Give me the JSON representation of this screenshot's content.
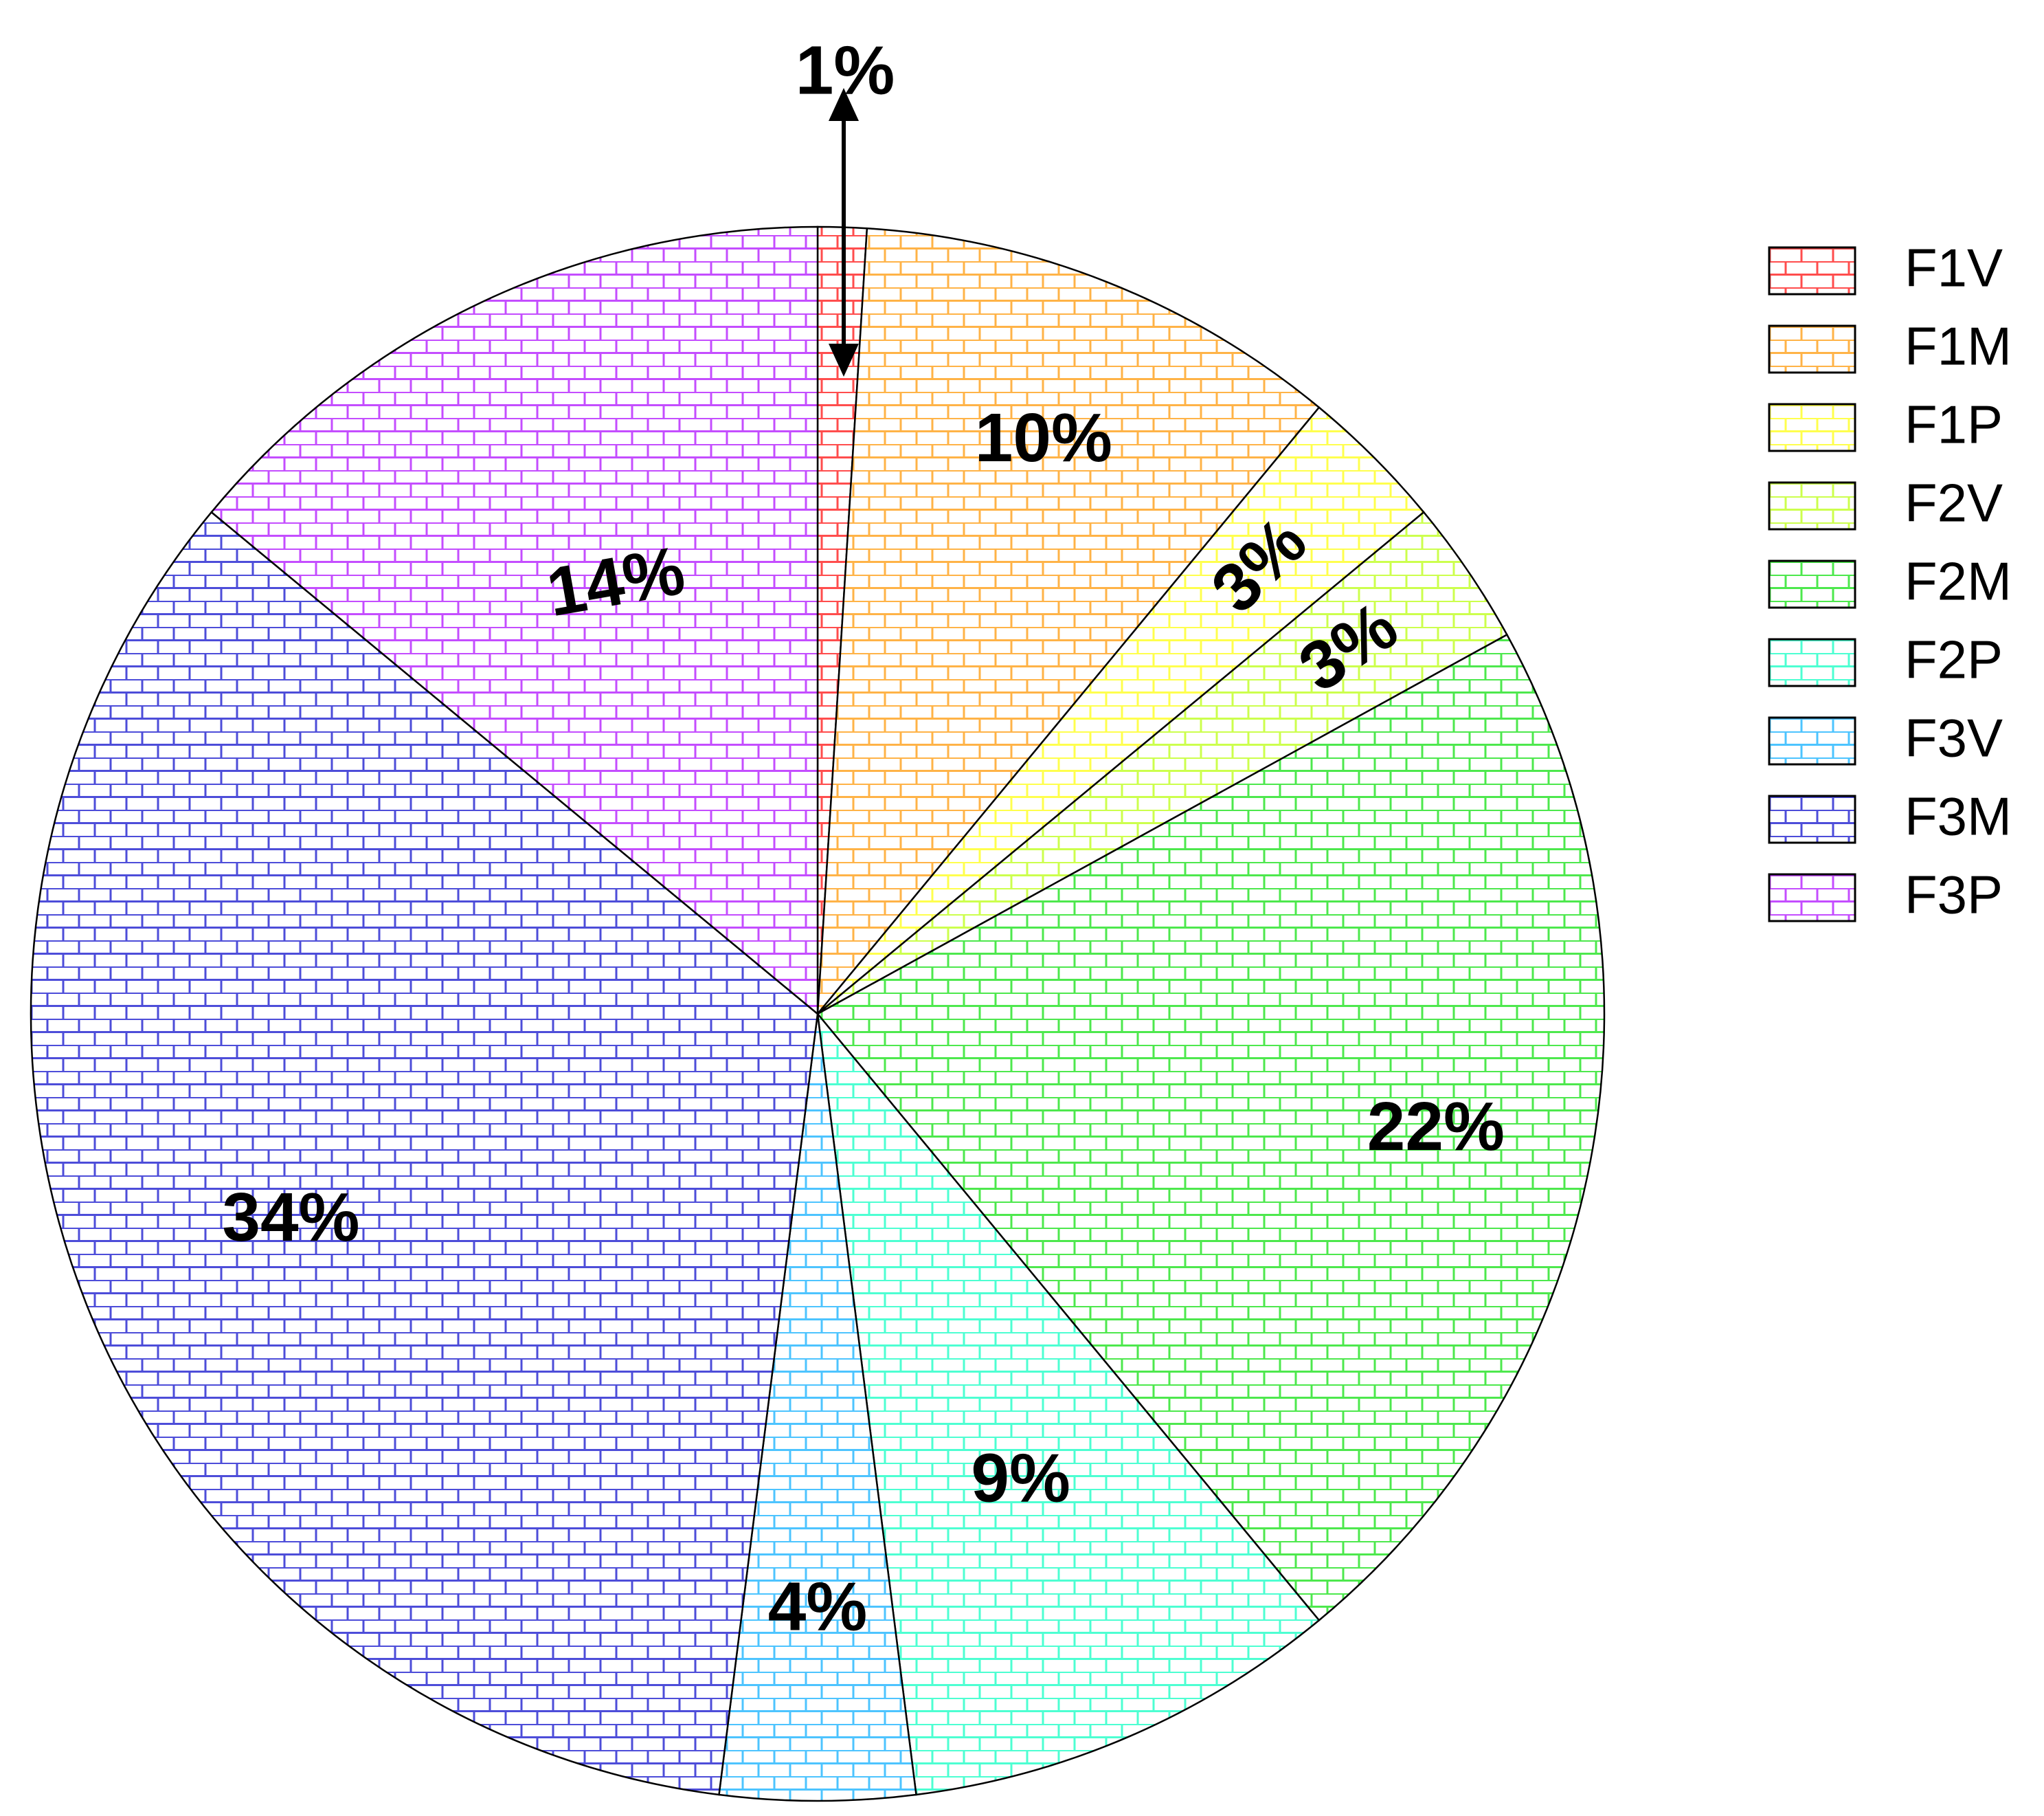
{
  "chart_data": {
    "type": "pie",
    "title": "",
    "slices": [
      {
        "name": "F1V",
        "value": 1,
        "label": "1%",
        "color": "#ff4d4d"
      },
      {
        "name": "F1M",
        "value": 10,
        "label": "10%",
        "color": "#ffb347"
      },
      {
        "name": "F1P",
        "value": 3,
        "label": "3%",
        "color": "#ffff4d"
      },
      {
        "name": "F2V",
        "value": 3,
        "label": "3%",
        "color": "#ccff4d"
      },
      {
        "name": "F2M",
        "value": 22,
        "label": "22%",
        "color": "#4de84d"
      },
      {
        "name": "F2P",
        "value": 9,
        "label": "9%",
        "color": "#4dffd2"
      },
      {
        "name": "F3V",
        "value": 4,
        "label": "4%",
        "color": "#4dc4ff"
      },
      {
        "name": "F3M",
        "value": 34,
        "label": "34%",
        "color": "#4d4dd9"
      },
      {
        "name": "F3P",
        "value": 14,
        "label": "14%",
        "color": "#c44dff"
      }
    ],
    "fill_pattern": "brick",
    "legend": {
      "position": "right",
      "entries": [
        "F1V",
        "F1M",
        "F1P",
        "F2V",
        "F2M",
        "F2P",
        "F3V",
        "F3M",
        "F3P"
      ]
    },
    "start_angle": "12 o'clock",
    "direction": "clockwise",
    "annotation": "arrow pointing to the 1% slice"
  }
}
